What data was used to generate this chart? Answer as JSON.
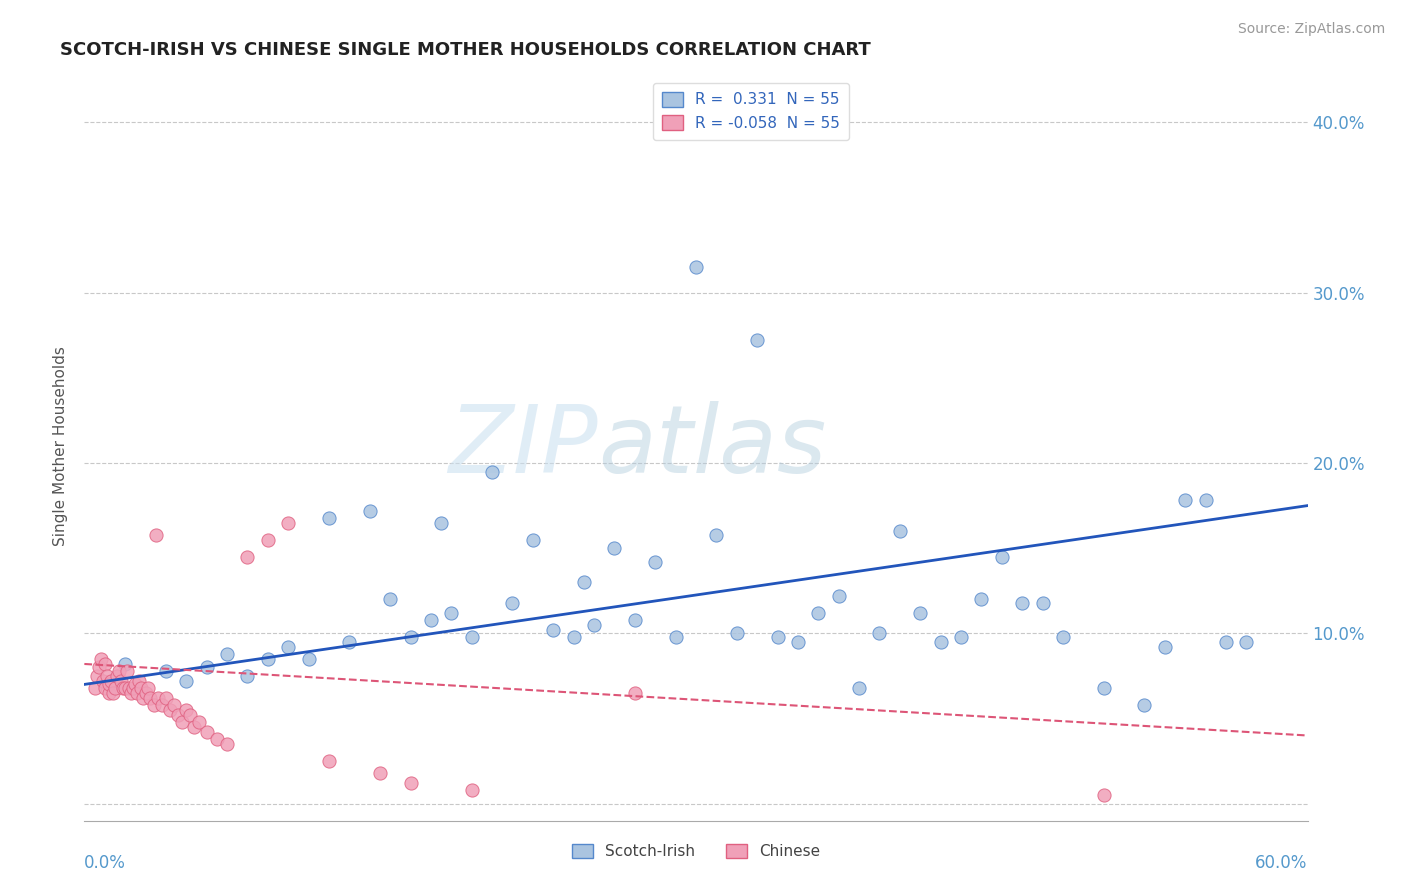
{
  "title": "SCOTCH-IRISH VS CHINESE SINGLE MOTHER HOUSEHOLDS CORRELATION CHART",
  "source": "Source: ZipAtlas.com",
  "ylabel": "Single Mother Households",
  "xlim": [
    0.0,
    0.6
  ],
  "ylim": [
    -0.01,
    0.43
  ],
  "ytick_vals": [
    0.0,
    0.1,
    0.2,
    0.3,
    0.4
  ],
  "ytick_labels": [
    "",
    "10.0%",
    "20.0%",
    "30.0%",
    "40.0%"
  ],
  "legend_R_scotch": "0.331",
  "legend_R_chinese": "-0.058",
  "legend_N": "55",
  "scotch_color": "#aac4e0",
  "chinese_color": "#f0a0b8",
  "scotch_edge_color": "#5588cc",
  "chinese_edge_color": "#e06080",
  "scotch_line_color": "#2255bb",
  "chinese_line_color": "#dd5577",
  "watermark_color": "#cce4f4",
  "scotch_x": [
    0.02,
    0.04,
    0.05,
    0.06,
    0.07,
    0.08,
    0.09,
    0.1,
    0.11,
    0.12,
    0.13,
    0.14,
    0.15,
    0.16,
    0.17,
    0.175,
    0.18,
    0.19,
    0.2,
    0.21,
    0.22,
    0.23,
    0.24,
    0.245,
    0.25,
    0.26,
    0.27,
    0.28,
    0.29,
    0.3,
    0.31,
    0.32,
    0.33,
    0.34,
    0.35,
    0.36,
    0.37,
    0.38,
    0.39,
    0.4,
    0.41,
    0.42,
    0.43,
    0.44,
    0.45,
    0.46,
    0.47,
    0.48,
    0.5,
    0.52,
    0.53,
    0.54,
    0.55,
    0.56,
    0.57
  ],
  "scotch_y": [
    0.082,
    0.078,
    0.072,
    0.08,
    0.088,
    0.075,
    0.085,
    0.092,
    0.085,
    0.168,
    0.095,
    0.172,
    0.12,
    0.098,
    0.108,
    0.165,
    0.112,
    0.098,
    0.195,
    0.118,
    0.155,
    0.102,
    0.098,
    0.13,
    0.105,
    0.15,
    0.108,
    0.142,
    0.098,
    0.315,
    0.158,
    0.1,
    0.272,
    0.098,
    0.095,
    0.112,
    0.122,
    0.068,
    0.1,
    0.16,
    0.112,
    0.095,
    0.098,
    0.12,
    0.145,
    0.118,
    0.118,
    0.098,
    0.068,
    0.058,
    0.092,
    0.178,
    0.178,
    0.095,
    0.095
  ],
  "chinese_x": [
    0.005,
    0.006,
    0.007,
    0.008,
    0.009,
    0.01,
    0.01,
    0.011,
    0.012,
    0.012,
    0.013,
    0.014,
    0.015,
    0.016,
    0.017,
    0.018,
    0.019,
    0.02,
    0.021,
    0.022,
    0.023,
    0.024,
    0.025,
    0.026,
    0.027,
    0.028,
    0.029,
    0.03,
    0.031,
    0.032,
    0.034,
    0.035,
    0.036,
    0.038,
    0.04,
    0.042,
    0.044,
    0.046,
    0.048,
    0.05,
    0.052,
    0.054,
    0.056,
    0.06,
    0.065,
    0.07,
    0.08,
    0.09,
    0.1,
    0.12,
    0.145,
    0.16,
    0.19,
    0.27,
    0.5
  ],
  "chinese_y": [
    0.068,
    0.075,
    0.08,
    0.085,
    0.072,
    0.068,
    0.082,
    0.075,
    0.065,
    0.07,
    0.072,
    0.065,
    0.068,
    0.075,
    0.078,
    0.072,
    0.068,
    0.068,
    0.078,
    0.068,
    0.065,
    0.068,
    0.07,
    0.065,
    0.072,
    0.068,
    0.062,
    0.065,
    0.068,
    0.062,
    0.058,
    0.158,
    0.062,
    0.058,
    0.062,
    0.055,
    0.058,
    0.052,
    0.048,
    0.055,
    0.052,
    0.045,
    0.048,
    0.042,
    0.038,
    0.035,
    0.145,
    0.155,
    0.165,
    0.025,
    0.018,
    0.012,
    0.008,
    0.065,
    0.005
  ],
  "scotch_reg": [
    0.07,
    0.175
  ],
  "chinese_reg": [
    0.082,
    0.04
  ]
}
